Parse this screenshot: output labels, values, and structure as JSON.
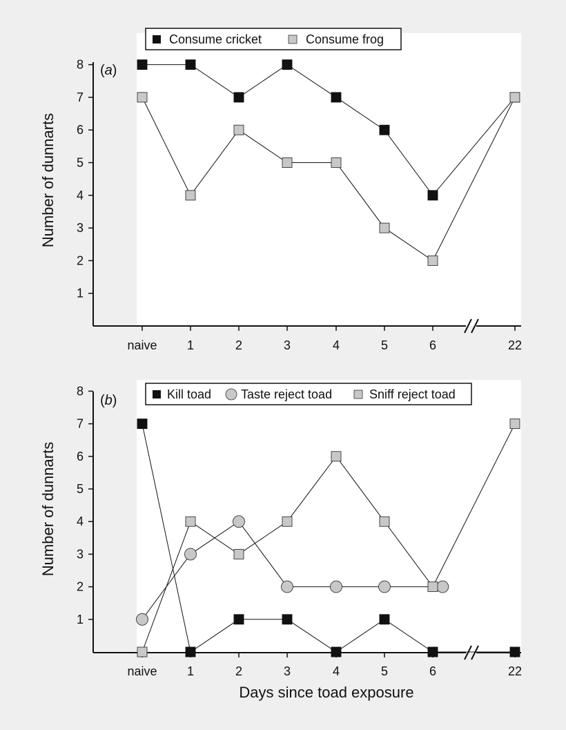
{
  "chart_data": [
    {
      "type": "line",
      "panel_label": "a",
      "title": "",
      "xlabel": "",
      "ylabel": "Number of dunnarts",
      "categories": [
        "naive",
        "1",
        "2",
        "3",
        "4",
        "5",
        "6",
        "22"
      ],
      "y_ticks": [
        "1",
        "2",
        "3",
        "4",
        "5",
        "6",
        "7",
        "8"
      ],
      "ylim": [
        0,
        8.3
      ],
      "axis_break": "between 6 and 22",
      "grid": false,
      "legend_position": "top",
      "series": [
        {
          "name": "Consume cricket",
          "marker": "square",
          "fill": "#111111",
          "values": [
            8,
            8,
            7,
            8,
            7,
            6,
            4,
            7
          ]
        },
        {
          "name": "Consume frog",
          "marker": "square",
          "fill": "#c8c8c8",
          "values": [
            7,
            4,
            6,
            5,
            5,
            3,
            2,
            7
          ]
        }
      ]
    },
    {
      "type": "line",
      "panel_label": "b",
      "title": "",
      "xlabel": "Days since toad exposure",
      "ylabel": "Number of dunnarts",
      "categories": [
        "naive",
        "1",
        "2",
        "3",
        "4",
        "5",
        "6",
        "22"
      ],
      "y_ticks": [
        "1",
        "2",
        "3",
        "4",
        "5",
        "6",
        "7",
        "8"
      ],
      "ylim": [
        0,
        8
      ],
      "axis_break": "between 6 and 22",
      "grid": false,
      "legend_position": "top",
      "series": [
        {
          "name": "Kill toad",
          "marker": "square",
          "fill": "#111111",
          "points": [
            [
              0,
              7
            ],
            [
              1,
              0
            ],
            [
              2,
              1
            ],
            [
              3,
              1
            ],
            [
              4,
              0
            ],
            [
              5,
              1
            ],
            [
              6,
              0
            ],
            [
              7,
              0
            ]
          ]
        },
        {
          "name": "Taste reject toad",
          "marker": "circle",
          "fill": "#c8c8c8",
          "points": [
            [
              0,
              1
            ],
            [
              1,
              3
            ],
            [
              2,
              4
            ],
            [
              3,
              2
            ],
            [
              4,
              2
            ],
            [
              5,
              2
            ],
            [
              6.12,
              2
            ]
          ]
        },
        {
          "name": "Sniff reject toad",
          "marker": "square",
          "fill": "#c8c8c8",
          "points": [
            [
              0,
              0
            ],
            [
              1,
              4
            ],
            [
              2,
              3
            ],
            [
              3,
              4
            ],
            [
              4,
              6
            ],
            [
              5,
              4
            ],
            [
              6,
              2
            ],
            [
              7,
              7
            ]
          ]
        }
      ]
    }
  ]
}
